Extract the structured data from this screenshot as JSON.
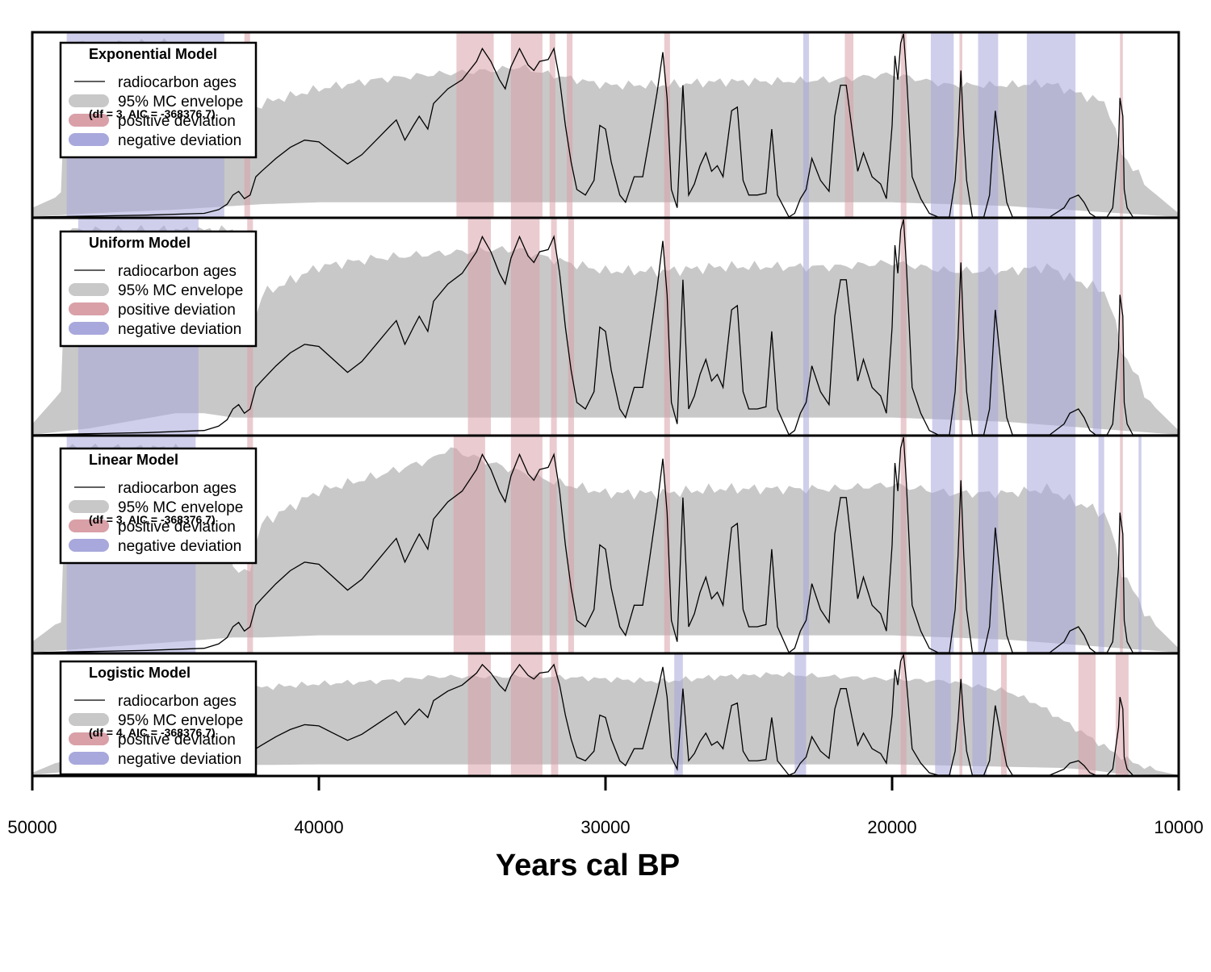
{
  "chart_data": [
    {
      "type": "area",
      "title": "Exponential Model",
      "stat": "(df = 3, AIC = -368376.7)",
      "xlim": [
        50000,
        10000
      ],
      "ylim": [
        0,
        1
      ],
      "legend_placement": "top-left",
      "legend": [
        "radiocarbon ages",
        "95% MC envelope",
        "positive deviation",
        "negative deviation"
      ],
      "env_low_x": [
        50000,
        48000,
        45000,
        44000,
        43000,
        42000,
        40000,
        35000,
        30000,
        25000,
        20000,
        18000,
        16000,
        14000,
        12000,
        10000
      ],
      "env_low": [
        0.0,
        0.02,
        0.04,
        0.05,
        0.06,
        0.07,
        0.08,
        0.08,
        0.08,
        0.08,
        0.08,
        0.07,
        0.06,
        0.04,
        0.02,
        0.0
      ],
      "env_high_x": [
        50000,
        49000,
        48800,
        45000,
        43500,
        43000,
        42500,
        42000,
        40000,
        38000,
        36000,
        34000,
        33000,
        32000,
        30000,
        28000,
        26000,
        24000,
        22000,
        20000,
        18000,
        16000,
        14500,
        14000,
        12500,
        12000,
        11000,
        10000
      ],
      "env_high": [
        0.05,
        0.12,
        0.95,
        0.95,
        0.8,
        0.3,
        0.55,
        0.62,
        0.7,
        0.75,
        0.78,
        0.8,
        0.82,
        0.78,
        0.72,
        0.72,
        0.74,
        0.74,
        0.75,
        0.78,
        0.72,
        0.72,
        0.73,
        0.7,
        0.62,
        0.35,
        0.15,
        0.02
      ],
      "pos": [
        [
          42600,
          42400
        ],
        [
          35200,
          33900
        ],
        [
          33300,
          32200
        ],
        [
          31950,
          31750
        ],
        [
          31350,
          31150
        ],
        [
          27950,
          27750
        ],
        [
          21650,
          21350
        ],
        [
          19700,
          19500
        ],
        [
          17650,
          17550
        ],
        [
          12050,
          11950
        ]
      ],
      "neg": [
        [
          48800,
          43300
        ],
        [
          23100,
          22900
        ],
        [
          18650,
          17850
        ],
        [
          17000,
          16300
        ],
        [
          15300,
          13600
        ]
      ]
    },
    {
      "type": "area",
      "title": "Uniform Model",
      "stat": "",
      "xlim": [
        50000,
        10000
      ],
      "ylim": [
        0,
        1
      ],
      "legend_placement": "top-left",
      "legend": [
        "radiocarbon ages",
        "95% MC envelope",
        "positive deviation",
        "negative deviation"
      ],
      "env_low_x": [
        50000,
        48000,
        45000,
        44000,
        43000,
        42000,
        40000,
        35000,
        30000,
        25000,
        20000,
        18000,
        16000,
        14000,
        12000,
        10000
      ],
      "env_low": [
        0.0,
        0.03,
        0.1,
        0.1,
        0.08,
        0.08,
        0.08,
        0.08,
        0.08,
        0.08,
        0.08,
        0.07,
        0.06,
        0.04,
        0.02,
        0.0
      ],
      "env_high_x": [
        50000,
        49000,
        48800,
        45000,
        44000,
        43000,
        42500,
        42000,
        40000,
        38000,
        36000,
        34000,
        33000,
        32000,
        30000,
        28000,
        26000,
        24000,
        22000,
        20000,
        18000,
        16000,
        14500,
        14000,
        12500,
        12000,
        11000,
        10000
      ],
      "env_high": [
        0.05,
        0.2,
        0.95,
        0.95,
        0.95,
        0.95,
        0.4,
        0.65,
        0.78,
        0.82,
        0.84,
        0.86,
        0.86,
        0.82,
        0.76,
        0.76,
        0.78,
        0.78,
        0.78,
        0.8,
        0.76,
        0.76,
        0.78,
        0.74,
        0.66,
        0.4,
        0.15,
        0.02
      ],
      "pos": [
        [
          42500,
          42300
        ],
        [
          34800,
          34000
        ],
        [
          33300,
          32300
        ],
        [
          31900,
          31700
        ],
        [
          31300,
          31100
        ],
        [
          27950,
          27750
        ],
        [
          19700,
          19500
        ],
        [
          17650,
          17550
        ],
        [
          12050,
          11950
        ]
      ],
      "neg": [
        [
          48400,
          44200
        ],
        [
          23100,
          22900
        ],
        [
          18600,
          17800
        ],
        [
          17000,
          16300
        ],
        [
          15300,
          13600
        ],
        [
          13000,
          12700
        ]
      ]
    },
    {
      "type": "area",
      "title": "Linear Model",
      "stat": "(df = 3, AIC = -368376.7)",
      "xlim": [
        50000,
        10000
      ],
      "ylim": [
        0,
        1
      ],
      "legend_placement": "top-left",
      "legend": [
        "radiocarbon ages",
        "95% MC envelope",
        "positive deviation",
        "negative deviation"
      ],
      "env_low_x": [
        50000,
        48000,
        45000,
        44000,
        43000,
        42000,
        40000,
        35000,
        30000,
        25000,
        20000,
        18000,
        16000,
        14000,
        12000,
        10000
      ],
      "env_low": [
        0.0,
        0.02,
        0.05,
        0.06,
        0.07,
        0.07,
        0.08,
        0.08,
        0.08,
        0.08,
        0.08,
        0.07,
        0.06,
        0.04,
        0.02,
        0.0
      ],
      "env_high_x": [
        50000,
        49000,
        48800,
        45000,
        43500,
        43000,
        42500,
        42000,
        40000,
        38000,
        36000,
        35500,
        34000,
        33000,
        32000,
        30000,
        28000,
        26000,
        24000,
        22000,
        20000,
        18000,
        16000,
        14500,
        14000,
        12500,
        12000,
        11000,
        10000
      ],
      "env_high": [
        0.05,
        0.15,
        0.95,
        0.95,
        0.85,
        0.4,
        0.35,
        0.6,
        0.75,
        0.82,
        0.9,
        0.95,
        0.88,
        0.84,
        0.8,
        0.74,
        0.74,
        0.76,
        0.76,
        0.76,
        0.78,
        0.74,
        0.74,
        0.76,
        0.72,
        0.64,
        0.38,
        0.15,
        0.02
      ],
      "pos": [
        [
          42500,
          42300
        ],
        [
          35300,
          34200
        ],
        [
          33300,
          32200
        ],
        [
          31950,
          31700
        ],
        [
          31300,
          31100
        ],
        [
          27950,
          27750
        ],
        [
          19700,
          19500
        ],
        [
          17650,
          17550
        ],
        [
          12050,
          11950
        ]
      ],
      "neg": [
        [
          48800,
          44300
        ],
        [
          23100,
          22900
        ],
        [
          18650,
          17850
        ],
        [
          17000,
          16300
        ],
        [
          15300,
          13600
        ],
        [
          12800,
          12600
        ],
        [
          11400,
          11300
        ]
      ]
    },
    {
      "type": "area",
      "title": "Logistic Model",
      "stat": "(df = 4, AIC = -368376.7)",
      "xlim": [
        50000,
        10000
      ],
      "ylim": [
        0,
        1
      ],
      "legend_placement": "top-left",
      "legend": [
        "radiocarbon ages",
        "95% MC envelope",
        "positive deviation",
        "negative deviation"
      ],
      "env_low_x": [
        50000,
        48000,
        44000,
        40000,
        35000,
        30000,
        25000,
        20000,
        18000,
        16000,
        14000,
        13000,
        12000,
        10000
      ],
      "env_low": [
        0.0,
        0.05,
        0.08,
        0.09,
        0.09,
        0.09,
        0.09,
        0.09,
        0.08,
        0.07,
        0.06,
        0.04,
        0.01,
        0.0
      ],
      "env_high_x": [
        50000,
        49000,
        48000,
        46000,
        44000,
        42000,
        40000,
        38000,
        36000,
        34000,
        32000,
        30000,
        28000,
        26000,
        24000,
        22000,
        20000,
        18000,
        16000,
        15000,
        14000,
        13000,
        12000,
        11000,
        10000
      ],
      "env_high": [
        0.02,
        0.12,
        0.45,
        0.62,
        0.7,
        0.73,
        0.76,
        0.78,
        0.82,
        0.82,
        0.82,
        0.8,
        0.78,
        0.82,
        0.84,
        0.82,
        0.8,
        0.78,
        0.7,
        0.6,
        0.45,
        0.3,
        0.15,
        0.05,
        0.0
      ],
      "pos": [
        [
          34800,
          34000
        ],
        [
          33300,
          32200
        ],
        [
          31900,
          31650
        ],
        [
          19700,
          19500
        ],
        [
          17650,
          17550
        ],
        [
          16200,
          16000
        ],
        [
          13500,
          12900
        ],
        [
          12200,
          11750
        ]
      ],
      "neg": [
        [
          27600,
          27300
        ],
        [
          23400,
          23000
        ],
        [
          18500,
          17950
        ],
        [
          17200,
          16700
        ]
      ]
    }
  ],
  "radiocarbon_curve": {
    "x": [
      50000,
      48000,
      46000,
      44000,
      43500,
      43200,
      43000,
      42800,
      42600,
      42400,
      42200,
      42000,
      41500,
      41000,
      40500,
      40000,
      39500,
      39000,
      38500,
      38000,
      37500,
      37300,
      37000,
      36700,
      36500,
      36200,
      36000,
      35500,
      35000,
      34500,
      34300,
      34000,
      33700,
      33500,
      33300,
      33000,
      32700,
      32500,
      32300,
      32000,
      31800,
      31600,
      31400,
      31200,
      31000,
      30700,
      30400,
      30200,
      30000,
      29800,
      29500,
      29300,
      29000,
      28700,
      28500,
      28200,
      28000,
      27850,
      27700,
      27500,
      27300,
      27100,
      26900,
      26700,
      26500,
      26300,
      26100,
      25900,
      25600,
      25400,
      25200,
      25000,
      24700,
      24400,
      24200,
      24000,
      23800,
      23600,
      23400,
      23200,
      23000,
      22800,
      22500,
      22200,
      22000,
      21800,
      21600,
      21400,
      21200,
      21000,
      20700,
      20400,
      20200,
      20000,
      19900,
      19800,
      19700,
      19600,
      19500,
      19300,
      19000,
      18700,
      18400,
      18000,
      17800,
      17700,
      17600,
      17500,
      17400,
      17200,
      17000,
      16800,
      16600,
      16400,
      16200,
      16000,
      15800,
      15600,
      15300,
      15000,
      14500,
      14000,
      13800,
      13500,
      13300,
      13100,
      12900,
      12700,
      12500,
      12300,
      12100,
      12050,
      11950,
      11900,
      11800,
      11600,
      11400,
      11200,
      11000,
      10500,
      10000
    ],
    "y": [
      0.0,
      0.005,
      0.01,
      0.02,
      0.04,
      0.07,
      0.12,
      0.14,
      0.1,
      0.12,
      0.22,
      0.25,
      0.32,
      0.38,
      0.42,
      0.41,
      0.35,
      0.29,
      0.34,
      0.42,
      0.5,
      0.53,
      0.42,
      0.5,
      0.55,
      0.48,
      0.62,
      0.7,
      0.75,
      0.85,
      0.92,
      0.85,
      0.75,
      0.7,
      0.82,
      0.92,
      0.83,
      0.8,
      0.85,
      0.86,
      0.92,
      0.75,
      0.5,
      0.3,
      0.15,
      0.12,
      0.2,
      0.5,
      0.48,
      0.3,
      0.12,
      0.08,
      0.22,
      0.22,
      0.4,
      0.68,
      0.9,
      0.65,
      0.15,
      0.05,
      0.72,
      0.12,
      0.18,
      0.28,
      0.35,
      0.25,
      0.28,
      0.22,
      0.58,
      0.6,
      0.2,
      0.12,
      0.12,
      0.13,
      0.48,
      0.12,
      0.06,
      0.0,
      0.02,
      0.1,
      0.15,
      0.32,
      0.2,
      0.14,
      0.55,
      0.72,
      0.72,
      0.48,
      0.25,
      0.35,
      0.22,
      0.18,
      0.1,
      0.5,
      0.88,
      0.75,
      0.95,
      1.0,
      0.78,
      0.22,
      0.1,
      0.02,
      0.0,
      0.0,
      0.2,
      0.45,
      0.8,
      0.45,
      0.2,
      0.0,
      0.0,
      0.0,
      0.12,
      0.58,
      0.32,
      0.08,
      0.0,
      0.0,
      0.0,
      0.0,
      0.0,
      0.05,
      0.1,
      0.12,
      0.08,
      0.02,
      0.0,
      0.0,
      0.0,
      0.05,
      0.4,
      0.65,
      0.55,
      0.15,
      0.05,
      0.0,
      0.0,
      0.0,
      0.0,
      0.0,
      0.0
    ]
  },
  "x_axis": {
    "title": "Years cal BP",
    "ticks": [
      {
        "value": 50000,
        "label": "50000"
      },
      {
        "value": 40000,
        "label": "40000"
      },
      {
        "value": 30000,
        "label": "30000"
      },
      {
        "value": 20000,
        "label": "20000"
      },
      {
        "value": 10000,
        "label": "10000"
      }
    ]
  },
  "colors": {
    "envelope": "#c8c8c8",
    "positive": "#d9a0a8",
    "negative": "#a8a8dc",
    "curve": "#000000",
    "axis": "#000000"
  }
}
